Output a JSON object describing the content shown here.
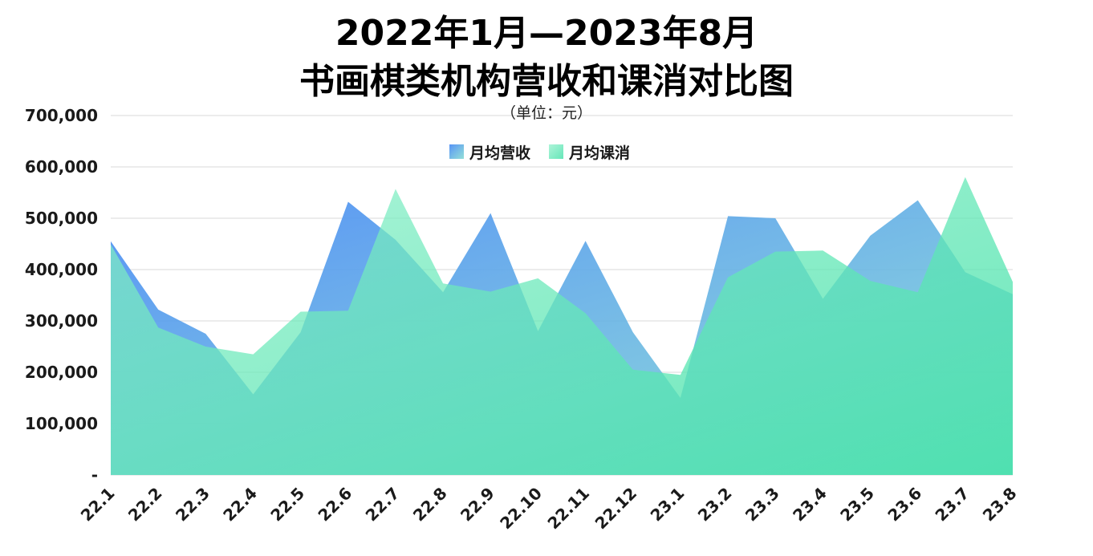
{
  "chart_data": {
    "type": "area",
    "title_line1": "2022年1月—2023年8月",
    "title_line2": "书画棋类机构营收和课消对比图",
    "subtitle": "（单位：元）",
    "categories": [
      "22.1",
      "22.2",
      "22.3",
      "22.4",
      "22.5",
      "22.6",
      "22.7",
      "22.8",
      "22.9",
      "22.10",
      "22.11",
      "22.12",
      "23.1",
      "23.2",
      "23.3",
      "23.4",
      "23.5",
      "23.6",
      "23.7",
      "23.8"
    ],
    "ylim": [
      0,
      700000
    ],
    "yticks": [
      {
        "value": 0,
        "label": "-"
      },
      {
        "value": 100000,
        "label": "100,000"
      },
      {
        "value": 200000,
        "label": "200,000"
      },
      {
        "value": 300000,
        "label": "300,000"
      },
      {
        "value": 400000,
        "label": "400,000"
      },
      {
        "value": 500000,
        "label": "500,000"
      },
      {
        "value": 600000,
        "label": "600,000"
      },
      {
        "value": 700000,
        "label": "700,000"
      }
    ],
    "grid": true,
    "legend_position": "top",
    "series": [
      {
        "name": "月均营收",
        "color_top": "#5b9cf6",
        "color_bottom": "#7ad7d3",
        "values": [
          455000,
          322000,
          275000,
          157000,
          278000,
          532000,
          458000,
          356000,
          510000,
          280000,
          456000,
          278000,
          150000,
          504000,
          500000,
          343000,
          466000,
          535000,
          395000,
          352000
        ]
      },
      {
        "name": "月均课消",
        "color_top": "#7eeab8",
        "color_bottom": "#4fe2ad",
        "values": [
          449000,
          287000,
          250000,
          235000,
          318000,
          320000,
          557000,
          373000,
          357000,
          383000,
          315000,
          205000,
          195000,
          385000,
          435000,
          437000,
          378000,
          356000,
          580000,
          376000
        ]
      }
    ]
  }
}
